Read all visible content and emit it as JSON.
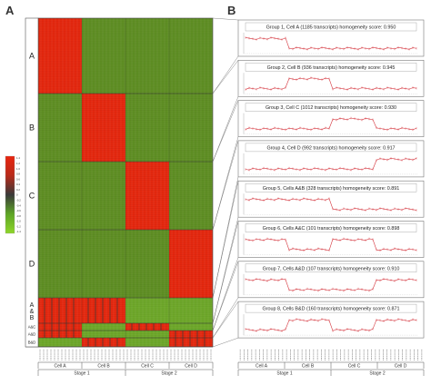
{
  "panel_a": {
    "letter": "A",
    "groups": [
      {
        "id": "A",
        "label": "A"
      },
      {
        "id": "B",
        "label": "B"
      },
      {
        "id": "C",
        "label": "C"
      },
      {
        "id": "D",
        "label": "D"
      },
      {
        "id": "A&B",
        "label_lines": [
          "A",
          "&",
          "B"
        ]
      },
      {
        "id": "A&C",
        "label": "A&C"
      },
      {
        "id": "A&D",
        "label": "A&D"
      },
      {
        "id": "B&D",
        "label": "B&D"
      }
    ],
    "colorbar_ticks": [
      "1.4",
      "1.2",
      "1.0",
      "0.8",
      "0.6",
      "0.4",
      "0.2",
      "0",
      "-0.2",
      "-0.4",
      "-0.6",
      "-0.8",
      "-1.0",
      "-1.2",
      "-1.4"
    ],
    "colors": {
      "high": "#e8250f",
      "mid": "#3a3a3a",
      "low": "#7bc41e",
      "background": "#5b8a22"
    },
    "cells": [
      "Cell A",
      "Cell B",
      "Cell C",
      "Cell D"
    ],
    "stages": [
      "Stage 1",
      "Stage 2"
    ]
  },
  "panel_b": {
    "letter": "B",
    "profiles": [
      {
        "title": "Group 1, Cell A (1185 transcripts) homogeneity score: 0.950",
        "bold": "Cell A",
        "high_cell": "A"
      },
      {
        "title": "Group 2, Cell B (936 transcripts) homogeneity score: 0.945",
        "bold": "Cell B",
        "high_cell": "B"
      },
      {
        "title": "Group 3, Cell C (1012 transcripts) homogeneity score: 0.930",
        "bold": "Cell C",
        "high_cell": "C"
      },
      {
        "title": "Group 4, Cell D (992 transcripts) homogeneity score: 0.917",
        "bold": "Cell D",
        "high_cell": "D"
      },
      {
        "title": "Group 5, Cells A&B (328 transcripts) homogeneity score: 0.891",
        "bold": "Cells A&B",
        "high_cell": "AB"
      },
      {
        "title": "Group 6, Cells A&C (101 transcripts) homogeneity score: 0.898",
        "bold": "Cells A&C",
        "high_cell": "AC"
      },
      {
        "title": "Group 7, Cells A&D (107 transcripts) homogeneity score: 0.910",
        "bold": "Cells A&D",
        "high_cell": "AD"
      },
      {
        "title": "Group 8, Cells B&D (160 transcripts) homogeneity score: 0.871",
        "bold": "Cells B&D",
        "high_cell": "BD"
      }
    ],
    "line_color": "#d4343c",
    "cells": [
      "Cell A",
      "Cell B",
      "Cell C",
      "Cell D"
    ],
    "stages": [
      "Stage 1",
      "Stage 2"
    ]
  }
}
